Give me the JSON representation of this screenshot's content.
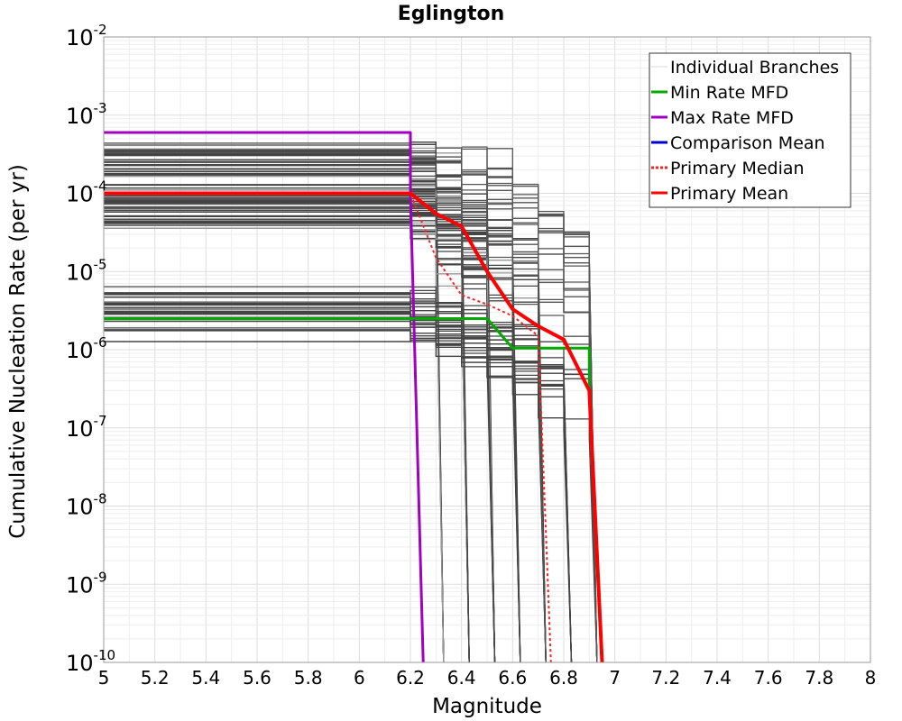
{
  "chart_data": {
    "type": "line",
    "title": "Eglington",
    "xlabel": "Magnitude",
    "ylabel": "Cumulative Nucleation Rate (per yr)",
    "xlim": [
      5,
      8
    ],
    "ylim": [
      1e-10,
      0.01
    ],
    "y_scale": "log",
    "grid": true,
    "legend_position": "top-right",
    "x_ticks": [
      "5",
      "5.2",
      "5.4",
      "5.6",
      "5.8",
      "6",
      "6.2",
      "6.4",
      "6.6",
      "6.8",
      "7",
      "7.2",
      "7.4",
      "7.6",
      "7.8",
      "8"
    ],
    "y_tick_base": "10",
    "y_tick_exponents": [
      "-10",
      "-9",
      "-8",
      "-7",
      "-6",
      "-5",
      "-4",
      "-3",
      "-2"
    ],
    "legend": [
      {
        "label": "Individual Branches",
        "color": "#d9d9d9",
        "style": "solid"
      },
      {
        "label": "Min Rate MFD",
        "color": "#00aa00",
        "style": "solid"
      },
      {
        "label": "Max Rate MFD",
        "color": "#a000c0",
        "style": "solid"
      },
      {
        "label": "Comparison Mean",
        "color": "#0000d0",
        "style": "solid"
      },
      {
        "label": " Primary Median",
        "color": "#ff2020",
        "style": "dotted"
      },
      {
        "label": "Primary Mean",
        "color": "#ff0000",
        "style": "solid"
      }
    ],
    "branch_color": "#444444",
    "series": [
      {
        "name": "Max Rate MFD",
        "color": "#a000c0",
        "width": 3,
        "x": [
          5.0,
          6.2,
          6.2,
          6.25
        ],
        "y": [
          0.0006,
          0.0006,
          0.0001,
          1e-10
        ]
      },
      {
        "name": "Min Rate MFD",
        "color": "#00aa00",
        "width": 3,
        "x": [
          5.0,
          6.2,
          6.5,
          6.6,
          6.9,
          6.9,
          6.95
        ],
        "y": [
          2.5e-06,
          2.5e-06,
          2.5e-06,
          1.05e-06,
          1.05e-06,
          3e-07,
          1e-10
        ]
      },
      {
        "name": "Primary Median",
        "color": "#ff2020",
        "width": 2,
        "dash": "3,3",
        "x": [
          5.0,
          6.2,
          6.3,
          6.4,
          6.5,
          6.6,
          6.7,
          6.75
        ],
        "y": [
          0.0001,
          0.0001,
          1.5e-05,
          5e-06,
          3.8e-06,
          2.7e-06,
          1.5e-06,
          1e-10
        ]
      },
      {
        "name": "Primary Mean",
        "color": "#ff0000",
        "width": 4,
        "x": [
          5.0,
          6.2,
          6.3,
          6.4,
          6.5,
          6.6,
          6.7,
          6.8,
          6.9,
          6.95
        ],
        "y": [
          0.0001,
          0.0001,
          5.5e-05,
          3.8e-05,
          1e-05,
          3.3e-06,
          2e-06,
          1.35e-06,
          3e-07,
          1e-10
        ]
      }
    ]
  }
}
